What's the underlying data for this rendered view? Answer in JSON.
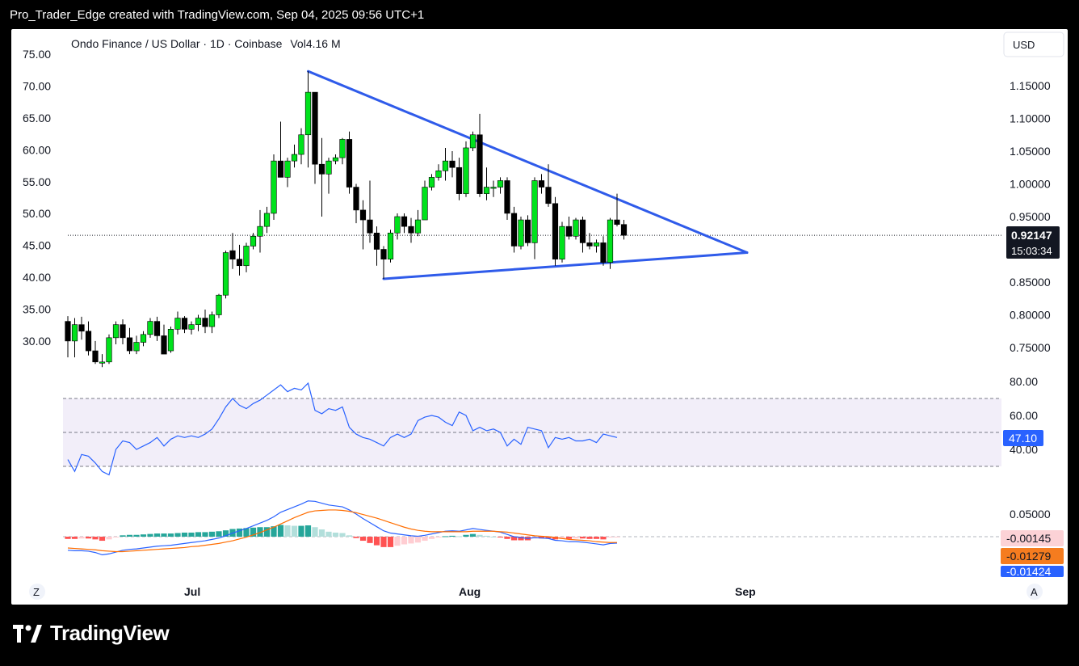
{
  "header": {
    "caption": "Pro_Trader_Edge created with TradingView.com, Sep 04, 2025 09:56 UTC+1"
  },
  "footer": {
    "brand": "TradingView"
  },
  "chart": {
    "legend": "Ondo Finance / US Dollar · 1D · Coinbase",
    "volume_label": "Vol",
    "volume_value": "4.16 M",
    "currency_button": "USD",
    "last_price": "0.92147",
    "countdown": "15:03:34",
    "left_axis_ticks": [
      "75.00",
      "70.00",
      "65.00",
      "60.00",
      "55.00",
      "50.00",
      "45.00",
      "40.00",
      "35.00",
      "30.00"
    ],
    "right_axis_ticks": [
      "1.15000",
      "1.10000",
      "1.05000",
      "1.00000",
      "0.95000",
      "0.85000",
      "0.80000",
      "0.75000"
    ],
    "time_labels": [
      "Jul",
      "Aug",
      "Sep"
    ],
    "corner_left": "Z",
    "corner_right": "A",
    "rsi_ticks": [
      "80.00",
      "60.00",
      "40.00"
    ],
    "rsi_value": "47.10",
    "macd_tick": "0.05000",
    "macd_hist_value": "-0.00145",
    "macd_signal_value": "-0.01279",
    "macd_line_value": "-0.01424"
  },
  "chart_data": {
    "type": "candlestick",
    "symbol": "Ondo Finance / US Dollar",
    "interval": "1D",
    "exchange": "Coinbase",
    "currency": "USD",
    "price_range": [
      0.72,
      1.18
    ],
    "last_price": 0.92147,
    "candles": [
      {
        "o": 0.79,
        "h": 0.798,
        "l": 0.735,
        "c": 0.76
      },
      {
        "o": 0.76,
        "h": 0.795,
        "l": 0.735,
        "c": 0.785
      },
      {
        "o": 0.785,
        "h": 0.797,
        "l": 0.762,
        "c": 0.775
      },
      {
        "o": 0.775,
        "h": 0.79,
        "l": 0.738,
        "c": 0.745
      },
      {
        "o": 0.745,
        "h": 0.76,
        "l": 0.725,
        "c": 0.728
      },
      {
        "o": 0.728,
        "h": 0.74,
        "l": 0.72,
        "c": 0.728
      },
      {
        "o": 0.728,
        "h": 0.77,
        "l": 0.725,
        "c": 0.765
      },
      {
        "o": 0.765,
        "h": 0.79,
        "l": 0.755,
        "c": 0.785
      },
      {
        "o": 0.785,
        "h": 0.793,
        "l": 0.755,
        "c": 0.765
      },
      {
        "o": 0.765,
        "h": 0.78,
        "l": 0.74,
        "c": 0.745
      },
      {
        "o": 0.745,
        "h": 0.768,
        "l": 0.74,
        "c": 0.758
      },
      {
        "o": 0.758,
        "h": 0.775,
        "l": 0.752,
        "c": 0.77
      },
      {
        "o": 0.77,
        "h": 0.795,
        "l": 0.765,
        "c": 0.79
      },
      {
        "o": 0.79,
        "h": 0.797,
        "l": 0.76,
        "c": 0.768
      },
      {
        "o": 0.768,
        "h": 0.785,
        "l": 0.742,
        "c": 0.74
      },
      {
        "o": 0.745,
        "h": 0.782,
        "l": 0.742,
        "c": 0.778
      },
      {
        "o": 0.778,
        "h": 0.805,
        "l": 0.77,
        "c": 0.795
      },
      {
        "o": 0.795,
        "h": 0.798,
        "l": 0.772,
        "c": 0.778
      },
      {
        "o": 0.778,
        "h": 0.79,
        "l": 0.77,
        "c": 0.785
      },
      {
        "o": 0.785,
        "h": 0.8,
        "l": 0.775,
        "c": 0.795
      },
      {
        "o": 0.795,
        "h": 0.808,
        "l": 0.772,
        "c": 0.782
      },
      {
        "o": 0.782,
        "h": 0.805,
        "l": 0.772,
        "c": 0.8
      },
      {
        "o": 0.8,
        "h": 0.832,
        "l": 0.795,
        "c": 0.83
      },
      {
        "o": 0.83,
        "h": 0.898,
        "l": 0.825,
        "c": 0.895
      },
      {
        "o": 0.898,
        "h": 0.925,
        "l": 0.87,
        "c": 0.885
      },
      {
        "o": 0.885,
        "h": 0.907,
        "l": 0.86,
        "c": 0.875
      },
      {
        "o": 0.875,
        "h": 0.91,
        "l": 0.865,
        "c": 0.905
      },
      {
        "o": 0.905,
        "h": 0.925,
        "l": 0.9,
        "c": 0.92
      },
      {
        "o": 0.92,
        "h": 0.96,
        "l": 0.895,
        "c": 0.935
      },
      {
        "o": 0.935,
        "h": 0.965,
        "l": 0.925,
        "c": 0.955
      },
      {
        "o": 0.955,
        "h": 1.045,
        "l": 0.945,
        "c": 1.035
      },
      {
        "o": 1.035,
        "h": 1.095,
        "l": 1.01,
        "c": 1.01
      },
      {
        "o": 1.01,
        "h": 1.04,
        "l": 0.995,
        "c": 1.035
      },
      {
        "o": 1.035,
        "h": 1.06,
        "l": 1.025,
        "c": 1.045
      },
      {
        "o": 1.045,
        "h": 1.085,
        "l": 1.03,
        "c": 1.075
      },
      {
        "o": 1.075,
        "h": 1.172,
        "l": 1.025,
        "c": 1.14
      },
      {
        "o": 1.14,
        "h": 1.14,
        "l": 1.0,
        "c": 1.03
      },
      {
        "o": 1.03,
        "h": 1.07,
        "l": 0.95,
        "c": 1.015
      },
      {
        "o": 1.015,
        "h": 1.04,
        "l": 0.985,
        "c": 1.035
      },
      {
        "o": 1.035,
        "h": 1.045,
        "l": 1.03,
        "c": 1.04
      },
      {
        "o": 1.04,
        "h": 1.07,
        "l": 1.03,
        "c": 1.068
      },
      {
        "o": 1.068,
        "h": 1.08,
        "l": 0.985,
        "c": 0.995
      },
      {
        "o": 0.995,
        "h": 1.0,
        "l": 0.94,
        "c": 0.96
      },
      {
        "o": 0.96,
        "h": 0.975,
        "l": 0.9,
        "c": 0.945
      },
      {
        "o": 0.945,
        "h": 1.005,
        "l": 0.91,
        "c": 0.925
      },
      {
        "o": 0.925,
        "h": 0.935,
        "l": 0.875,
        "c": 0.9
      },
      {
        "o": 0.9,
        "h": 0.905,
        "l": 0.855,
        "c": 0.885
      },
      {
        "o": 0.885,
        "h": 0.93,
        "l": 0.88,
        "c": 0.925
      },
      {
        "o": 0.925,
        "h": 0.955,
        "l": 0.915,
        "c": 0.95
      },
      {
        "o": 0.95,
        "h": 0.955,
        "l": 0.925,
        "c": 0.935
      },
      {
        "o": 0.935,
        "h": 0.948,
        "l": 0.91,
        "c": 0.925
      },
      {
        "o": 0.925,
        "h": 0.96,
        "l": 0.92,
        "c": 0.945
      },
      {
        "o": 0.945,
        "h": 1.005,
        "l": 0.945,
        "c": 0.995
      },
      {
        "o": 0.995,
        "h": 1.015,
        "l": 0.99,
        "c": 1.01
      },
      {
        "o": 1.01,
        "h": 1.03,
        "l": 1.005,
        "c": 1.02
      },
      {
        "o": 1.02,
        "h": 1.055,
        "l": 1.005,
        "c": 1.035
      },
      {
        "o": 1.035,
        "h": 1.05,
        "l": 1.01,
        "c": 1.025
      },
      {
        "o": 1.025,
        "h": 1.04,
        "l": 0.975,
        "c": 0.985
      },
      {
        "o": 0.985,
        "h": 1.065,
        "l": 0.98,
        "c": 1.055
      },
      {
        "o": 1.055,
        "h": 1.08,
        "l": 1.05,
        "c": 1.075
      },
      {
        "o": 1.075,
        "h": 1.107,
        "l": 0.98,
        "c": 0.985
      },
      {
        "o": 0.985,
        "h": 1.025,
        "l": 0.975,
        "c": 0.995
      },
      {
        "o": 0.995,
        "h": 1.005,
        "l": 0.98,
        "c": 0.995
      },
      {
        "o": 0.995,
        "h": 1.01,
        "l": 0.985,
        "c": 1.005
      },
      {
        "o": 1.005,
        "h": 1.01,
        "l": 0.945,
        "c": 0.955
      },
      {
        "o": 0.955,
        "h": 0.965,
        "l": 0.895,
        "c": 0.905
      },
      {
        "o": 0.905,
        "h": 0.95,
        "l": 0.9,
        "c": 0.945
      },
      {
        "o": 0.945,
        "h": 0.952,
        "l": 0.905,
        "c": 0.91
      },
      {
        "o": 0.91,
        "h": 1.01,
        "l": 0.885,
        "c": 1.005
      },
      {
        "o": 1.005,
        "h": 1.015,
        "l": 0.985,
        "c": 0.995
      },
      {
        "o": 0.995,
        "h": 1.03,
        "l": 0.965,
        "c": 0.97
      },
      {
        "o": 0.97,
        "h": 0.98,
        "l": 0.875,
        "c": 0.885
      },
      {
        "o": 0.885,
        "h": 0.942,
        "l": 0.88,
        "c": 0.935
      },
      {
        "o": 0.935,
        "h": 0.95,
        "l": 0.915,
        "c": 0.92
      },
      {
        "o": 0.92,
        "h": 0.948,
        "l": 0.915,
        "c": 0.945
      },
      {
        "o": 0.945,
        "h": 0.95,
        "l": 0.895,
        "c": 0.91
      },
      {
        "o": 0.91,
        "h": 0.925,
        "l": 0.9,
        "c": 0.905
      },
      {
        "o": 0.905,
        "h": 0.915,
        "l": 0.895,
        "c": 0.91
      },
      {
        "o": 0.91,
        "h": 0.92,
        "l": 0.875,
        "c": 0.88
      },
      {
        "o": 0.88,
        "h": 0.948,
        "l": 0.87,
        "c": 0.945
      },
      {
        "o": 0.945,
        "h": 0.985,
        "l": 0.935,
        "c": 0.938
      },
      {
        "o": 0.938,
        "h": 0.945,
        "l": 0.915,
        "c": 0.92147
      }
    ],
    "trendlines": [
      {
        "from_index": 35,
        "from_price": 1.172,
        "to_index": 98,
        "to_price": 0.895
      },
      {
        "from_index": 46,
        "from_price": 0.855,
        "to_index": 98,
        "to_price": 0.895
      }
    ],
    "rsi": {
      "range": [
        22,
        85
      ],
      "bands": [
        70,
        30
      ],
      "mid": 50,
      "value": 47.1,
      "values": [
        34,
        27,
        37,
        36,
        32,
        27,
        25,
        40,
        45,
        44,
        40,
        42,
        44,
        47,
        42,
        46,
        48,
        47,
        48,
        47,
        49,
        52,
        58,
        65,
        70,
        66,
        64,
        67,
        69,
        72,
        75,
        78,
        74,
        76,
        75,
        79,
        63,
        61,
        64,
        63,
        65,
        53,
        49,
        47,
        46,
        44,
        42,
        47,
        49,
        47,
        49,
        57,
        59,
        60,
        59,
        56,
        54,
        62,
        60,
        51,
        53,
        51,
        52,
        50,
        42,
        46,
        43,
        53,
        52,
        51,
        41,
        47,
        46,
        47,
        45,
        45,
        46,
        44,
        49,
        48,
        47
      ]
    },
    "macd": {
      "line_value": -0.01424,
      "signal_value": -0.01279,
      "hist_value": -0.00145,
      "line": [
        -0.03,
        -0.031,
        -0.031,
        -0.032,
        -0.035,
        -0.04,
        -0.038,
        -0.034,
        -0.03,
        -0.028,
        -0.027,
        -0.025,
        -0.023,
        -0.021,
        -0.02,
        -0.019,
        -0.017,
        -0.015,
        -0.013,
        -0.011,
        -0.009,
        -0.006,
        -0.003,
        0.002,
        0.008,
        0.013,
        0.018,
        0.024,
        0.03,
        0.036,
        0.044,
        0.054,
        0.06,
        0.066,
        0.072,
        0.079,
        0.078,
        0.074,
        0.07,
        0.068,
        0.066,
        0.059,
        0.05,
        0.04,
        0.031,
        0.022,
        0.013,
        0.008,
        0.006,
        0.004,
        0.002,
        0.001,
        0.003,
        0.006,
        0.009,
        0.012,
        0.013,
        0.012,
        0.015,
        0.018,
        0.016,
        0.014,
        0.012,
        0.01,
        0.005,
        0.0,
        -0.002,
        -0.004,
        -0.002,
        -0.003,
        -0.004,
        -0.008,
        -0.009,
        -0.011,
        -0.011,
        -0.012,
        -0.014,
        -0.016,
        -0.018,
        -0.015,
        -0.01424
      ],
      "signal": [
        -0.025,
        -0.026,
        -0.027,
        -0.028,
        -0.029,
        -0.031,
        -0.032,
        -0.033,
        -0.033,
        -0.032,
        -0.031,
        -0.03,
        -0.029,
        -0.028,
        -0.027,
        -0.026,
        -0.025,
        -0.024,
        -0.022,
        -0.021,
        -0.019,
        -0.017,
        -0.015,
        -0.012,
        -0.009,
        -0.005,
        -0.001,
        0.004,
        0.009,
        0.015,
        0.021,
        0.028,
        0.035,
        0.042,
        0.048,
        0.054,
        0.057,
        0.058,
        0.059,
        0.059,
        0.058,
        0.056,
        0.053,
        0.049,
        0.045,
        0.041,
        0.036,
        0.031,
        0.026,
        0.021,
        0.017,
        0.014,
        0.012,
        0.011,
        0.011,
        0.011,
        0.011,
        0.011,
        0.011,
        0.012,
        0.012,
        0.012,
        0.012,
        0.011,
        0.01,
        0.008,
        0.006,
        0.004,
        0.002,
        0.001,
        0.0,
        -0.002,
        -0.004,
        -0.006,
        -0.007,
        -0.008,
        -0.009,
        -0.011,
        -0.012,
        -0.013,
        -0.01279
      ],
      "hist": [
        -0.005,
        -0.005,
        -0.004,
        -0.004,
        -0.006,
        -0.009,
        -0.006,
        -0.001,
        0.003,
        0.004,
        0.004,
        0.005,
        0.006,
        0.007,
        0.007,
        0.007,
        0.008,
        0.009,
        0.009,
        0.01,
        0.01,
        0.011,
        0.012,
        0.014,
        0.017,
        0.018,
        0.019,
        0.02,
        0.021,
        0.021,
        0.023,
        0.026,
        0.025,
        0.024,
        0.024,
        0.025,
        0.021,
        0.016,
        0.011,
        0.009,
        0.008,
        0.003,
        -0.003,
        -0.009,
        -0.014,
        -0.019,
        -0.023,
        -0.023,
        -0.02,
        -0.017,
        -0.015,
        -0.013,
        -0.009,
        -0.005,
        -0.002,
        0.001,
        0.002,
        0.001,
        0.004,
        0.006,
        0.004,
        0.002,
        0.0,
        -0.001,
        -0.005,
        -0.008,
        -0.008,
        -0.008,
        -0.004,
        -0.004,
        -0.004,
        -0.006,
        -0.005,
        -0.005,
        -0.004,
        -0.004,
        -0.005,
        -0.005,
        -0.006,
        -0.002,
        -0.00145
      ]
    }
  }
}
